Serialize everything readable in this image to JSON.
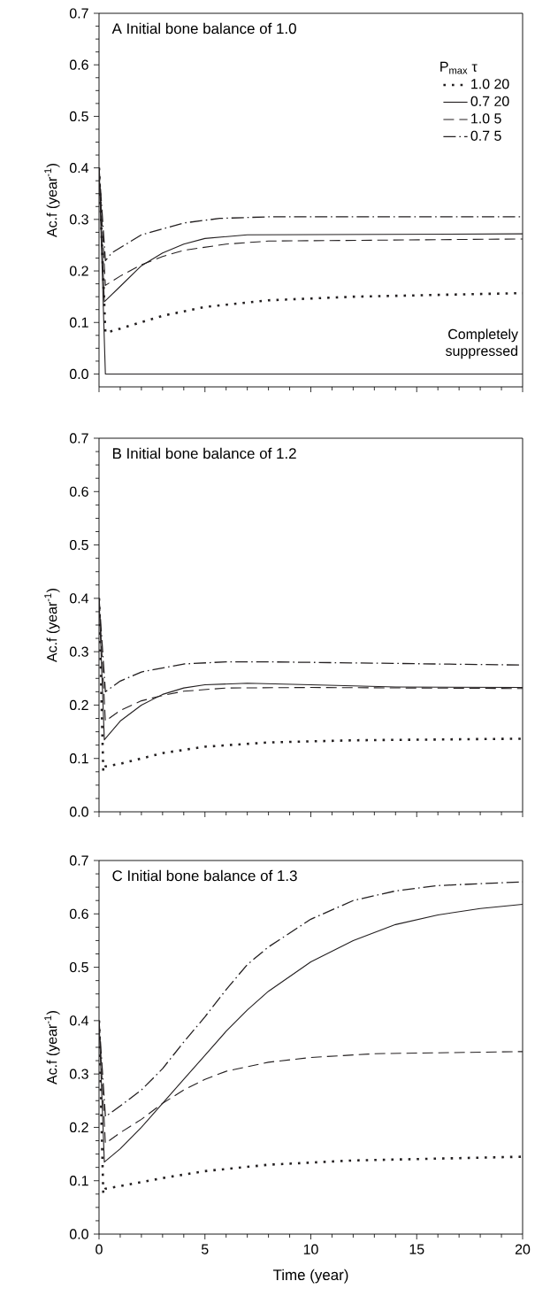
{
  "chart_data": [
    {
      "type": "line",
      "title": "A Initial bone balance of 1.0",
      "ylabel": "Ac.f (year$^{-1}$)",
      "legend_title": "P$_{max}$   τ",
      "legend": "top right",
      "tick_labels": "y",
      "annotations": [
        "Completely suppressed"
      ],
      "xlim": [
        0,
        20
      ],
      "xticks": [
        0,
        5,
        10,
        15,
        20
      ],
      "ylim": [
        -0.025,
        0.7
      ],
      "yticks": [
        {
          "value": 0,
          "label": "0.0"
        },
        {
          "value": 0.1,
          "label": "0.1"
        },
        {
          "value": 0.2,
          "label": "0.2"
        },
        {
          "value": 0.3,
          "label": "0.3"
        },
        {
          "value": 0.4,
          "label": "0.4"
        },
        {
          "value": 0.5,
          "label": "0.5"
        },
        {
          "value": 0.6,
          "label": "0.6"
        },
        {
          "value": 0.7,
          "label": "0.7"
        }
      ],
      "series": [
        {
          "name": "1.0  20",
          "color": "#231f20",
          "line_style": "dotted",
          "x": [
            0,
            0.3,
            1,
            3,
            5,
            8,
            12,
            20
          ],
          "values": [
            0.4,
            0.08,
            0.088,
            0.113,
            0.13,
            0.143,
            0.15,
            0.157
          ]
        },
        {
          "name": "0.7  20",
          "color": "#231f20",
          "line_style": "solid",
          "x": [
            0,
            0.25,
            1,
            2,
            3,
            4,
            5,
            7,
            20
          ],
          "values": [
            0.4,
            0.14,
            0.17,
            0.21,
            0.235,
            0.252,
            0.263,
            0.27,
            0.272
          ]
        },
        {
          "name": "1.0  5",
          "color": "#231f20",
          "line_style": "dashed",
          "x": [
            0,
            0.3,
            1,
            2,
            3,
            4,
            6,
            8,
            20
          ],
          "values": [
            0.4,
            0.172,
            0.19,
            0.212,
            0.228,
            0.24,
            0.252,
            0.258,
            0.262
          ]
        },
        {
          "name": "0.7  5",
          "color": "#231f20",
          "line_style": "dashdot",
          "x": [
            0,
            0.3,
            0.6,
            2,
            4,
            5.7,
            8,
            20
          ],
          "values": [
            0.4,
            0.22,
            0.235,
            0.27,
            0.293,
            0.302,
            0.305,
            0.305
          ]
        },
        {
          "color": "#231f20",
          "line_style": "solid",
          "x": [
            0,
            0.3,
            20
          ],
          "values": [
            0.4,
            0,
            0
          ]
        }
      ]
    },
    {
      "type": "line",
      "title": "B Initial bone balance of 1.2",
      "ylabel": "Ac.f (year$^{-1}$)",
      "tick_labels": "y",
      "xlim": [
        0,
        20
      ],
      "xticks": [
        0,
        5,
        10,
        15,
        20
      ],
      "ylim": [
        0,
        0.7
      ],
      "yticks": [
        {
          "value": 0,
          "label": "0.0"
        },
        {
          "value": 0.1,
          "label": "0.1"
        },
        {
          "value": 0.2,
          "label": "0.2"
        },
        {
          "value": 0.3,
          "label": "0.3"
        },
        {
          "value": 0.4,
          "label": "0.4"
        },
        {
          "value": 0.5,
          "label": "0.5"
        },
        {
          "value": 0.6,
          "label": "0.6"
        },
        {
          "value": 0.7,
          "label": "0.7"
        }
      ],
      "series": [
        {
          "color": "#231f20",
          "line_style": "dotted",
          "x": [
            0,
            0.2,
            0.3,
            1,
            3,
            5,
            8,
            12,
            20
          ],
          "values": [
            0.4,
            0.075,
            0.085,
            0.09,
            0.11,
            0.122,
            0.13,
            0.134,
            0.137
          ]
        },
        {
          "color": "#231f20",
          "line_style": "solid",
          "x": [
            0,
            0.25,
            1,
            2,
            3,
            4,
            5,
            7,
            10,
            14,
            20
          ],
          "values": [
            0.4,
            0.135,
            0.17,
            0.2,
            0.22,
            0.232,
            0.238,
            0.241,
            0.238,
            0.234,
            0.233
          ]
        },
        {
          "color": "#231f20",
          "line_style": "dashed",
          "x": [
            0,
            0.3,
            1,
            2,
            3,
            4,
            6,
            10,
            20
          ],
          "values": [
            0.4,
            0.17,
            0.19,
            0.208,
            0.218,
            0.226,
            0.232,
            0.233,
            0.231
          ]
        },
        {
          "color": "#231f20",
          "line_style": "dashdot",
          "x": [
            0,
            0.3,
            1,
            2,
            4,
            6,
            8,
            12,
            20
          ],
          "values": [
            0.4,
            0.225,
            0.245,
            0.262,
            0.277,
            0.281,
            0.281,
            0.279,
            0.275
          ]
        }
      ]
    },
    {
      "type": "line",
      "title": "C  Initial bone balance of 1.3",
      "ylabel": "Ac.f (year$^{-1}$)",
      "xlabel": "Time (year)",
      "xlim": [
        0,
        20
      ],
      "xticks": [
        0,
        5,
        10,
        15,
        20
      ],
      "ylim": [
        0,
        0.7
      ],
      "yticks": [
        {
          "value": 0,
          "label": "0.0"
        },
        {
          "value": 0.1,
          "label": "0.1"
        },
        {
          "value": 0.2,
          "label": "0.2"
        },
        {
          "value": 0.3,
          "label": "0.3"
        },
        {
          "value": 0.4,
          "label": "0.4"
        },
        {
          "value": 0.5,
          "label": "0.5"
        },
        {
          "value": 0.6,
          "label": "0.6"
        },
        {
          "value": 0.7,
          "label": "0.7"
        }
      ],
      "series": [
        {
          "color": "#231f20",
          "line_style": "dotted",
          "x": [
            0,
            0.2,
            0.3,
            1,
            3,
            5,
            8,
            12,
            20
          ],
          "values": [
            0.4,
            0.075,
            0.085,
            0.09,
            0.105,
            0.118,
            0.13,
            0.138,
            0.145
          ]
        },
        {
          "color": "#231f20",
          "line_style": "solid",
          "x": [
            0,
            0.25,
            1,
            2,
            3,
            4,
            5,
            6,
            7,
            8,
            10,
            12,
            14,
            16,
            18,
            20
          ],
          "values": [
            0.4,
            0.135,
            0.16,
            0.2,
            0.245,
            0.29,
            0.335,
            0.38,
            0.42,
            0.455,
            0.51,
            0.55,
            0.58,
            0.598,
            0.61,
            0.618
          ]
        },
        {
          "color": "#231f20",
          "line_style": "dashed",
          "x": [
            0,
            0.3,
            1,
            2,
            3,
            4,
            5,
            6,
            8,
            10,
            13,
            20
          ],
          "values": [
            0.4,
            0.17,
            0.19,
            0.215,
            0.245,
            0.27,
            0.29,
            0.305,
            0.322,
            0.331,
            0.338,
            0.342
          ]
        },
        {
          "color": "#231f20",
          "line_style": "dashdot",
          "x": [
            0,
            0.3,
            1,
            2,
            3,
            4,
            5,
            6,
            7,
            8,
            10,
            12,
            14,
            16,
            20
          ],
          "values": [
            0.4,
            0.22,
            0.24,
            0.27,
            0.31,
            0.36,
            0.407,
            0.458,
            0.505,
            0.538,
            0.59,
            0.625,
            0.643,
            0.653,
            0.66
          ]
        }
      ]
    }
  ]
}
